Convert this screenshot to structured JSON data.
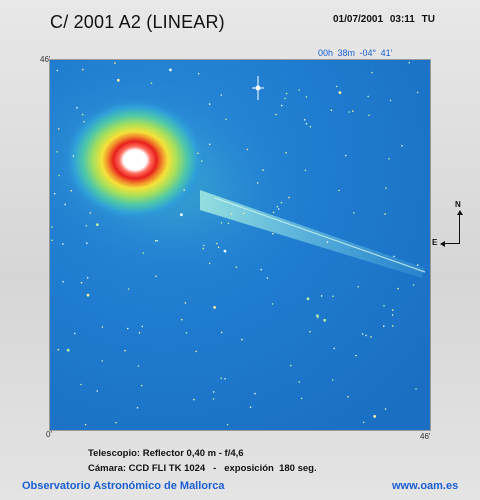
{
  "header": {
    "title": "C/ 2001 A2 (LINEAR)",
    "date": "01/07/2001",
    "time": "03:11 TU",
    "coordinates": "00h 38m  -04° 41’"
  },
  "scale": {
    "top_left": "46'",
    "bottom_left": "0'",
    "bottom_right": "46'"
  },
  "compass": {
    "north": "N",
    "east": "E"
  },
  "info": {
    "telescope": "Telescopio: Reflector 0,40 m - f/4,6",
    "camera": "Cámara: CCD FLI TK 1024   -   exposición  180 seg."
  },
  "footer": {
    "observatory": "Observatorio Astronómico de Mallorca",
    "website": "www.oam.es"
  },
  "colors": {
    "sky": "#1b75c9",
    "label_blue": "#1a5fd6",
    "coma_core": "#ffffff",
    "coma_ring": "#e8201c",
    "coma_halo": "#f5e23a"
  }
}
